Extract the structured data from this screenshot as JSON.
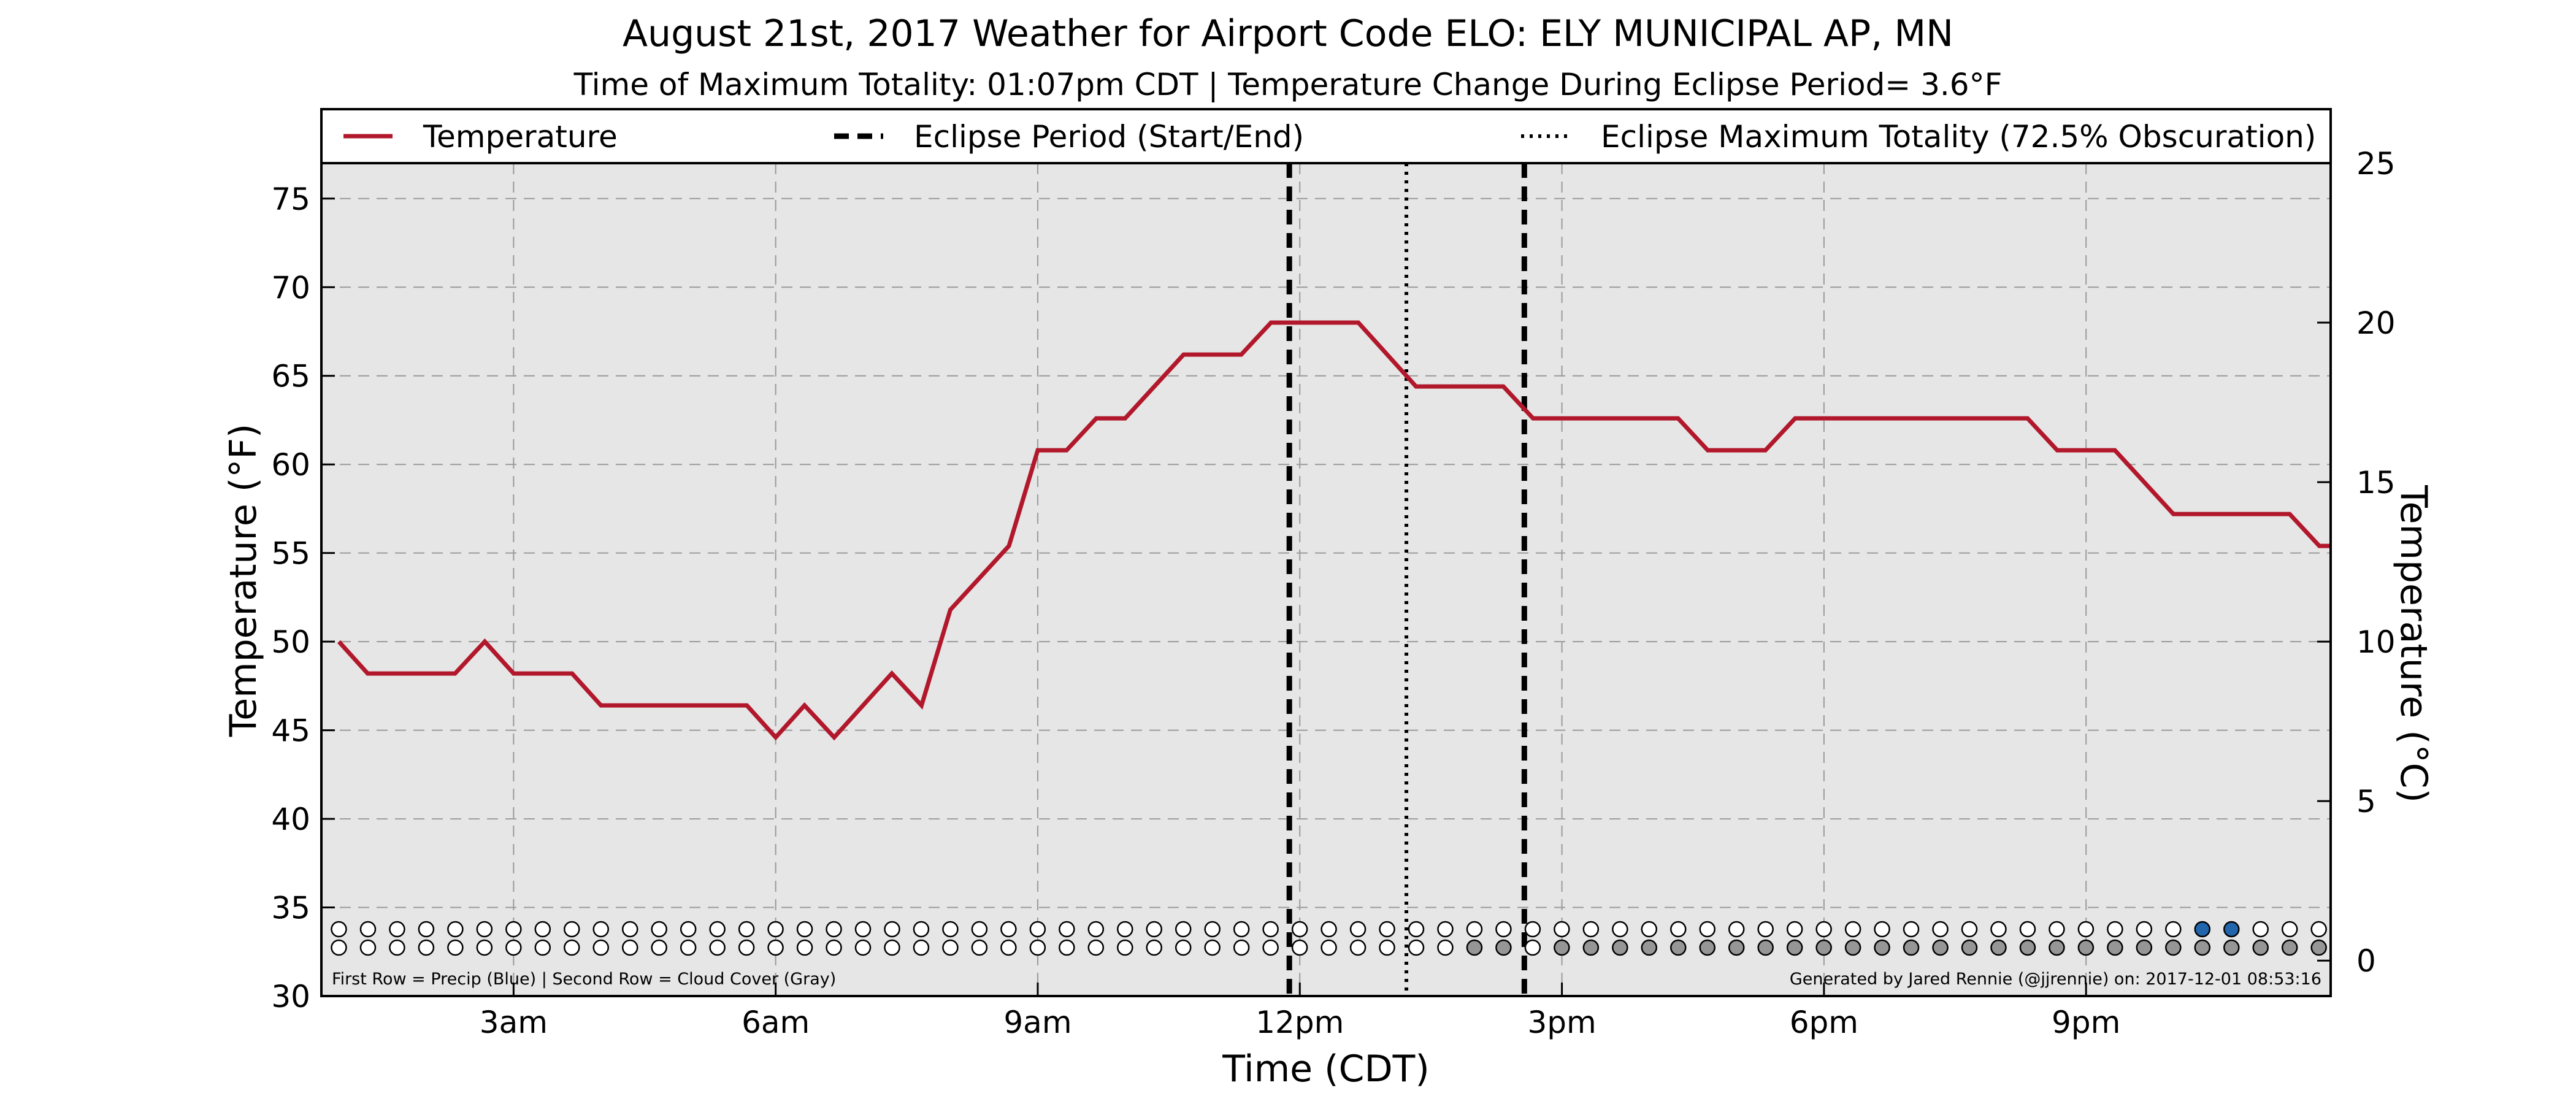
{
  "chart_data": {
    "type": "line",
    "title": "August 21st, 2017 Weather for Airport Code ELO: ELY MUNICIPAL AP, MN",
    "subtitle": "Time of Maximum Totality: 01:07pm CDT | Temperature Change During Eclipse Period= 3.6°F",
    "xlabel": "Time (CDT)",
    "ylabel": "Temperature (°F)",
    "ylabel_right": "Temperature (°C)",
    "xlim_hours": [
      0.8,
      23.8
    ],
    "ylim": [
      30,
      77
    ],
    "ylim_right_c": [
      -1.111,
      25
    ],
    "grid": true,
    "legend_placement": "top",
    "x_ticks": [
      {
        "hour": 3,
        "label": "3am"
      },
      {
        "hour": 6,
        "label": "6am"
      },
      {
        "hour": 9,
        "label": "9am"
      },
      {
        "hour": 12,
        "label": "12pm"
      },
      {
        "hour": 15,
        "label": "3pm"
      },
      {
        "hour": 18,
        "label": "6pm"
      },
      {
        "hour": 21,
        "label": "9pm"
      }
    ],
    "y_ticks": [
      30,
      35,
      40,
      45,
      50,
      55,
      60,
      65,
      70,
      75
    ],
    "y_ticks_right": [
      0,
      5,
      10,
      15,
      20,
      25
    ],
    "legend": [
      {
        "label": "Temperature",
        "style": "solid"
      },
      {
        "label": "Eclipse Period (Start/End)",
        "style": "dashed"
      },
      {
        "label": "Eclipse Maximum Totality (72.5% Obscuration)",
        "style": "dotted"
      }
    ],
    "series": [
      {
        "name": "Temperature",
        "color": "#b2182b",
        "points": [
          [
            1.0,
            50.0
          ],
          [
            1.33,
            48.2
          ],
          [
            2.33,
            48.2
          ],
          [
            2.67,
            50.0
          ],
          [
            3.0,
            48.2
          ],
          [
            3.67,
            48.2
          ],
          [
            4.0,
            46.4
          ],
          [
            5.67,
            46.4
          ],
          [
            6.0,
            44.6
          ],
          [
            6.33,
            46.4
          ],
          [
            6.67,
            44.6
          ],
          [
            7.0,
            46.4
          ],
          [
            7.33,
            48.2
          ],
          [
            7.67,
            46.4
          ],
          [
            8.0,
            51.8
          ],
          [
            8.67,
            55.4
          ],
          [
            9.0,
            60.8
          ],
          [
            9.33,
            60.8
          ],
          [
            9.67,
            62.6
          ],
          [
            10.0,
            62.6
          ],
          [
            10.67,
            66.2
          ],
          [
            11.33,
            66.2
          ],
          [
            11.67,
            68.0
          ],
          [
            12.67,
            68.0
          ],
          [
            13.33,
            64.4
          ],
          [
            14.33,
            64.4
          ],
          [
            14.67,
            62.6
          ],
          [
            16.33,
            62.6
          ],
          [
            16.67,
            60.8
          ],
          [
            17.33,
            60.8
          ],
          [
            17.67,
            62.6
          ],
          [
            20.33,
            62.6
          ],
          [
            20.67,
            60.8
          ],
          [
            21.33,
            60.8
          ],
          [
            22.0,
            57.2
          ],
          [
            23.33,
            57.2
          ],
          [
            23.67,
            55.4
          ],
          [
            24.67,
            55.4
          ]
        ]
      }
    ],
    "eclipse_period_hours": [
      11.88,
      14.57
    ],
    "eclipse_max_hour": 13.22,
    "eclipse_line_color": "#000000",
    "indicator_rows": {
      "start_hour": 1.0,
      "step_hour": 0.3333,
      "count": 69,
      "precip_color": "#2166ac",
      "cloud_color": "#969696",
      "empty_color": "#ffffff",
      "precip_filled_indices": [
        64,
        65
      ],
      "cloud_filled_indices": [
        39,
        40,
        42,
        43,
        44,
        45,
        46,
        47,
        48,
        49,
        50,
        51,
        52,
        53,
        54,
        55,
        56,
        57,
        58,
        59,
        60,
        61,
        62,
        63,
        64,
        65,
        66,
        67,
        68
      ]
    },
    "notes": {
      "left": "First Row = Precip (Blue) | Second Row = Cloud Cover (Gray)",
      "right": "Generated by Jared Rennie (@jjrennie) on: 2017-12-01 08:53:16"
    },
    "plot_background": "#e6e6e6"
  }
}
